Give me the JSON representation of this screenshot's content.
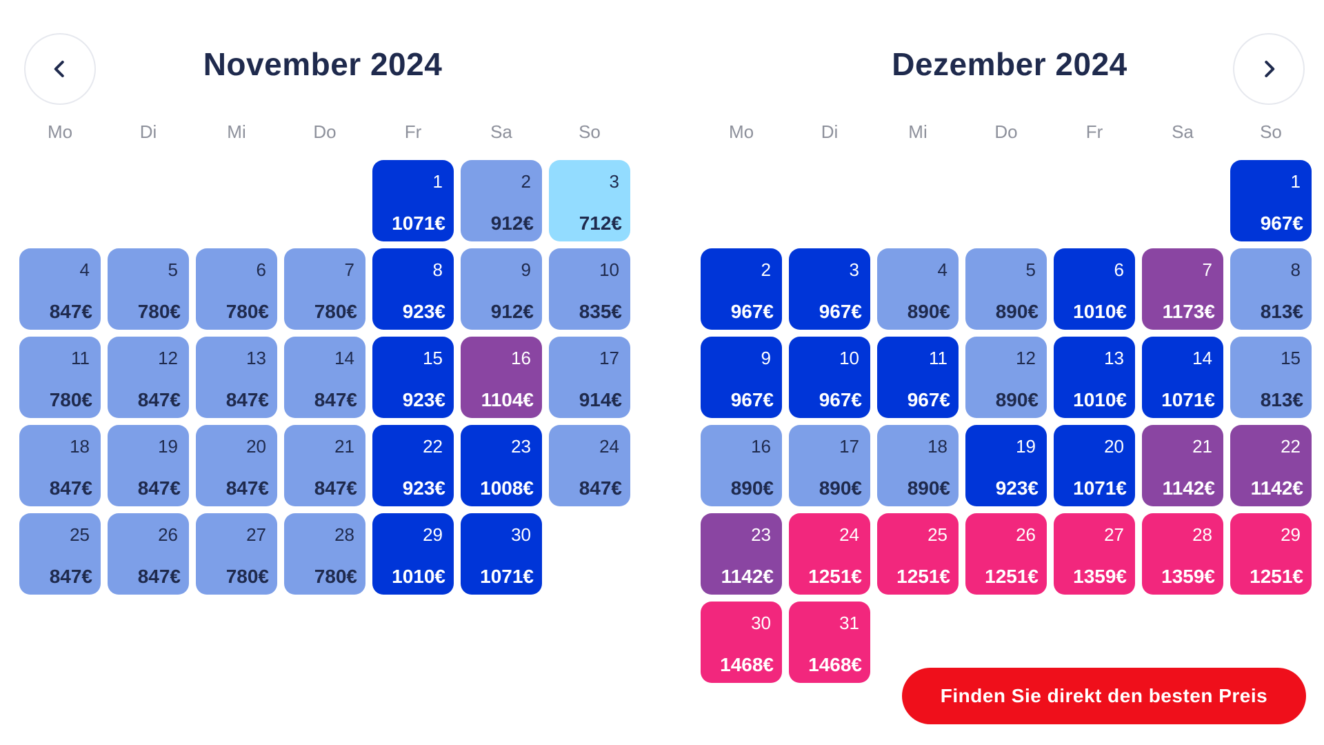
{
  "nav": {
    "prev_icon": "chevron-left-icon",
    "next_icon": "chevron-right-icon"
  },
  "colors": {
    "light": "#7d9fe8",
    "dark": "#0035d8",
    "purple": "#8a45a2",
    "pink": "#f2277d",
    "cyan": "#93dcff",
    "cta": "#ef0f1b"
  },
  "months": [
    {
      "title": "November 2024",
      "start_offset": 4,
      "weekdays": [
        "Mo",
        "Di",
        "Mi",
        "Do",
        "Fr",
        "Sa",
        "So"
      ],
      "days": [
        {
          "day": "1",
          "price": "1071€",
          "tier": "dark"
        },
        {
          "day": "2",
          "price": "912€",
          "tier": "light"
        },
        {
          "day": "3",
          "price": "712€",
          "tier": "cyan"
        },
        {
          "day": "4",
          "price": "847€",
          "tier": "light"
        },
        {
          "day": "5",
          "price": "780€",
          "tier": "light"
        },
        {
          "day": "6",
          "price": "780€",
          "tier": "light"
        },
        {
          "day": "7",
          "price": "780€",
          "tier": "light"
        },
        {
          "day": "8",
          "price": "923€",
          "tier": "dark"
        },
        {
          "day": "9",
          "price": "912€",
          "tier": "light"
        },
        {
          "day": "10",
          "price": "835€",
          "tier": "light"
        },
        {
          "day": "11",
          "price": "780€",
          "tier": "light"
        },
        {
          "day": "12",
          "price": "847€",
          "tier": "light"
        },
        {
          "day": "13",
          "price": "847€",
          "tier": "light"
        },
        {
          "day": "14",
          "price": "847€",
          "tier": "light"
        },
        {
          "day": "15",
          "price": "923€",
          "tier": "dark"
        },
        {
          "day": "16",
          "price": "1104€",
          "tier": "purple"
        },
        {
          "day": "17",
          "price": "914€",
          "tier": "light"
        },
        {
          "day": "18",
          "price": "847€",
          "tier": "light"
        },
        {
          "day": "19",
          "price": "847€",
          "tier": "light"
        },
        {
          "day": "20",
          "price": "847€",
          "tier": "light"
        },
        {
          "day": "21",
          "price": "847€",
          "tier": "light"
        },
        {
          "day": "22",
          "price": "923€",
          "tier": "dark"
        },
        {
          "day": "23",
          "price": "1008€",
          "tier": "dark"
        },
        {
          "day": "24",
          "price": "847€",
          "tier": "light"
        },
        {
          "day": "25",
          "price": "847€",
          "tier": "light"
        },
        {
          "day": "26",
          "price": "847€",
          "tier": "light"
        },
        {
          "day": "27",
          "price": "780€",
          "tier": "light"
        },
        {
          "day": "28",
          "price": "780€",
          "tier": "light"
        },
        {
          "day": "29",
          "price": "1010€",
          "tier": "dark"
        },
        {
          "day": "30",
          "price": "1071€",
          "tier": "dark"
        }
      ]
    },
    {
      "title": "Dezember 2024",
      "start_offset": 6,
      "weekdays": [
        "Mo",
        "Di",
        "Mi",
        "Do",
        "Fr",
        "Sa",
        "So"
      ],
      "days": [
        {
          "day": "1",
          "price": "967€",
          "tier": "dark"
        },
        {
          "day": "2",
          "price": "967€",
          "tier": "dark"
        },
        {
          "day": "3",
          "price": "967€",
          "tier": "dark"
        },
        {
          "day": "4",
          "price": "890€",
          "tier": "light"
        },
        {
          "day": "5",
          "price": "890€",
          "tier": "light"
        },
        {
          "day": "6",
          "price": "1010€",
          "tier": "dark"
        },
        {
          "day": "7",
          "price": "1173€",
          "tier": "purple"
        },
        {
          "day": "8",
          "price": "813€",
          "tier": "light"
        },
        {
          "day": "9",
          "price": "967€",
          "tier": "dark"
        },
        {
          "day": "10",
          "price": "967€",
          "tier": "dark"
        },
        {
          "day": "11",
          "price": "967€",
          "tier": "dark"
        },
        {
          "day": "12",
          "price": "890€",
          "tier": "light"
        },
        {
          "day": "13",
          "price": "1010€",
          "tier": "dark"
        },
        {
          "day": "14",
          "price": "1071€",
          "tier": "dark"
        },
        {
          "day": "15",
          "price": "813€",
          "tier": "light"
        },
        {
          "day": "16",
          "price": "890€",
          "tier": "light"
        },
        {
          "day": "17",
          "price": "890€",
          "tier": "light"
        },
        {
          "day": "18",
          "price": "890€",
          "tier": "light"
        },
        {
          "day": "19",
          "price": "923€",
          "tier": "dark"
        },
        {
          "day": "20",
          "price": "1071€",
          "tier": "dark"
        },
        {
          "day": "21",
          "price": "1142€",
          "tier": "purple"
        },
        {
          "day": "22",
          "price": "1142€",
          "tier": "purple"
        },
        {
          "day": "23",
          "price": "1142€",
          "tier": "purple"
        },
        {
          "day": "24",
          "price": "1251€",
          "tier": "pink"
        },
        {
          "day": "25",
          "price": "1251€",
          "tier": "pink"
        },
        {
          "day": "26",
          "price": "1251€",
          "tier": "pink"
        },
        {
          "day": "27",
          "price": "1359€",
          "tier": "pink"
        },
        {
          "day": "28",
          "price": "1359€",
          "tier": "pink"
        },
        {
          "day": "29",
          "price": "1251€",
          "tier": "pink"
        },
        {
          "day": "30",
          "price": "1468€",
          "tier": "pink"
        },
        {
          "day": "31",
          "price": "1468€",
          "tier": "pink"
        }
      ]
    }
  ],
  "cta": {
    "label": "Finden Sie direkt den besten Preis"
  }
}
